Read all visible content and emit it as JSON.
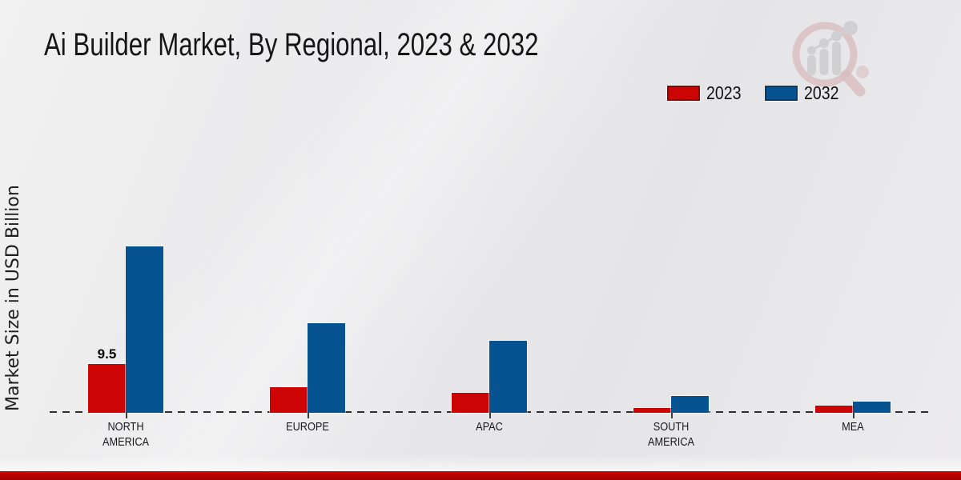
{
  "header": {
    "title": "Ai Builder Market, By Regional, 2023 & 2032",
    "logo": "magnifier-bar-chart-watermark"
  },
  "chart_data": {
    "type": "bar",
    "title": "Ai Builder Market, By Regional, 2023 & 2032",
    "xlabel": "",
    "ylabel": "Market Size in USD Billion",
    "unit": "USD Billion",
    "categories": [
      "NORTH AMERICA",
      "EUROPE",
      "APAC",
      "SOUTH AMERICA",
      "MEA"
    ],
    "category_lines": [
      [
        "NORTH",
        "AMERICA"
      ],
      [
        "EUROPE"
      ],
      [
        "APAC"
      ],
      [
        "SOUTH",
        "AMERICA"
      ],
      [
        "MEA"
      ]
    ],
    "series": [
      {
        "name": "2023",
        "color": "#cc0404",
        "values": [
          9.5,
          4.9,
          3.8,
          0.9,
          1.4
        ]
      },
      {
        "name": "2032",
        "color": "#075290",
        "values": [
          32.3,
          17.4,
          14.0,
          3.3,
          2.2
        ]
      }
    ],
    "data_labels": [
      {
        "series": "2023",
        "category": "NORTH AMERICA",
        "text": "9.5"
      }
    ],
    "ylim": [
      0,
      35
    ],
    "grid": false,
    "legend_position": "top-right",
    "baseline_style": "dashed-zero-line"
  },
  "footer": {
    "bar_color": "#b00404"
  }
}
